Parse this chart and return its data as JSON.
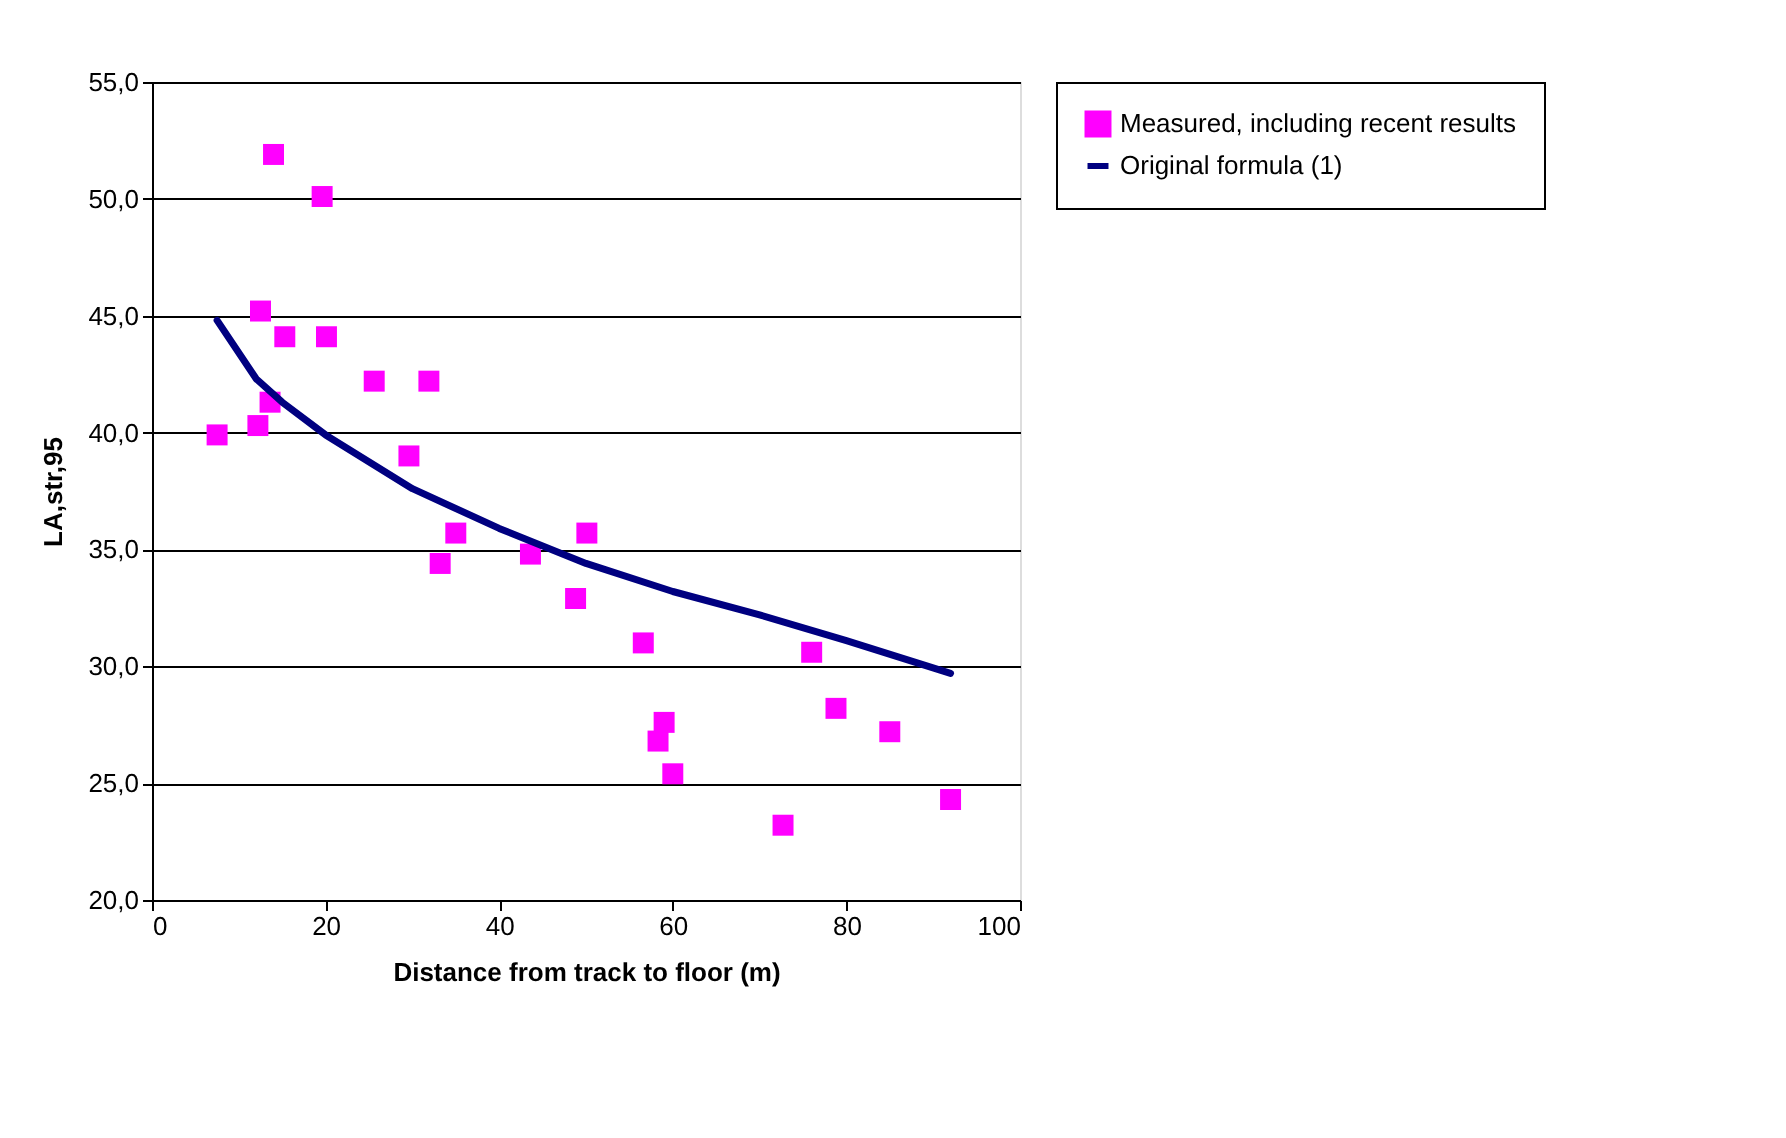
{
  "chart_data": {
    "type": "scatter",
    "xlabel": "Distance from track to floor (m)",
    "ylabel": "LA,str,95",
    "series": [
      {
        "name": "Measured, including recent results",
        "marker": "square",
        "color": "#ff00ff",
        "x": [
          7.5,
          12.2,
          12.5,
          13.6,
          14,
          15.3,
          19.6,
          20.1,
          25.6,
          29.6,
          31.9,
          33.2,
          35,
          43.6,
          48.8,
          50.1,
          56.6,
          58.3,
          59,
          60,
          72.7,
          76,
          78.8,
          85,
          92
        ],
        "values": [
          39.9,
          40.3,
          45.2,
          41.3,
          51.9,
          44.1,
          50.1,
          44.1,
          42.2,
          39.0,
          42.2,
          34.4,
          35.7,
          34.8,
          32.9,
          35.7,
          31.0,
          26.8,
          27.6,
          25.4,
          23.2,
          30.6,
          28.2,
          27.2,
          24.3
        ]
      },
      {
        "name": "Original formula (1)",
        "type": "line",
        "color": "#000080",
        "line_style": "solid",
        "x": [
          7.5,
          12,
          15,
          20,
          30,
          40,
          50,
          60,
          70,
          80,
          92
        ],
        "values": [
          44.8,
          42.3,
          41.3,
          39.9,
          37.6,
          35.9,
          34.4,
          33.2,
          32.2,
          31.1,
          29.7
        ]
      }
    ],
    "xlim": [
      0,
      100
    ],
    "xticks": [
      0,
      20,
      40,
      60,
      80,
      100
    ],
    "ylim": [
      20,
      55
    ],
    "yticks": [
      {
        "value": 20,
        "label": "20,0"
      },
      {
        "value": 25,
        "label": "25,0"
      },
      {
        "value": 30,
        "label": "30,0"
      },
      {
        "value": 35,
        "label": "35,0"
      },
      {
        "value": 40,
        "label": "40,0"
      },
      {
        "value": 45,
        "label": "45,0"
      },
      {
        "value": 50,
        "label": "50,0"
      },
      {
        "value": 55,
        "label": "55,0"
      }
    ],
    "grid": "y",
    "legend": "right"
  }
}
